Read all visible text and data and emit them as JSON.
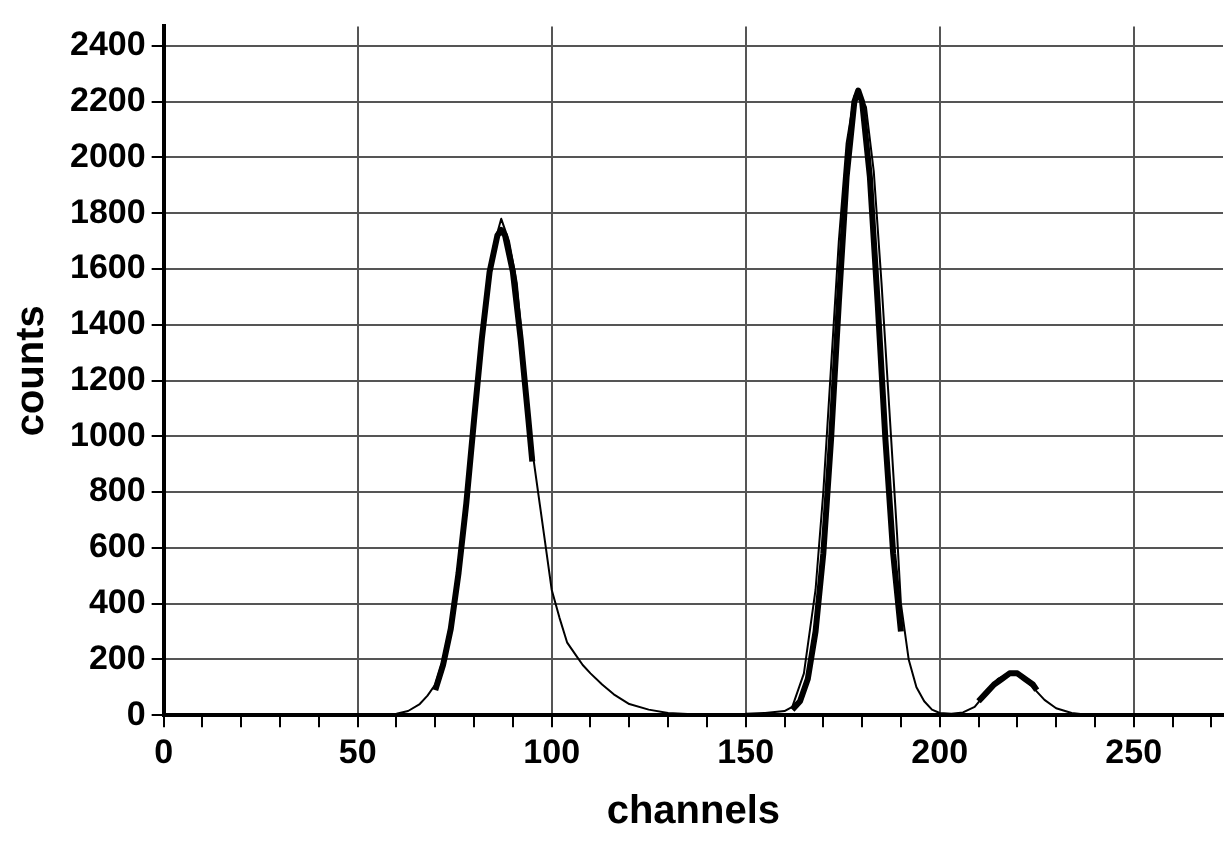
{
  "chart_data": {
    "type": "line",
    "xlabel": "channels",
    "ylabel": "counts",
    "xlim": [
      0,
      273
    ],
    "ylim": [
      0,
      2470
    ],
    "xticks": [
      0,
      {
        "value": 10,
        "label": null
      },
      {
        "value": 20,
        "label": null
      },
      {
        "value": 30,
        "label": null
      },
      {
        "value": 40,
        "label": null
      },
      50,
      {
        "value": 60,
        "label": null
      },
      {
        "value": 70,
        "label": null
      },
      {
        "value": 80,
        "label": null
      },
      {
        "value": 90,
        "label": null
      },
      100,
      {
        "value": 110,
        "label": null
      },
      {
        "value": 120,
        "label": null
      },
      {
        "value": 130,
        "label": null
      },
      {
        "value": 140,
        "label": null
      },
      150,
      {
        "value": 160,
        "label": null
      },
      {
        "value": 170,
        "label": null
      },
      {
        "value": 180,
        "label": null
      },
      {
        "value": 190,
        "label": null
      },
      200,
      {
        "value": 210,
        "label": null
      },
      {
        "value": 220,
        "label": null
      },
      {
        "value": 230,
        "label": null
      },
      {
        "value": 240,
        "label": null
      },
      250,
      {
        "value": 260,
        "label": null
      },
      {
        "value": 270,
        "label": null
      }
    ],
    "yticks": [
      0,
      200,
      400,
      600,
      800,
      1000,
      1200,
      1400,
      1600,
      1800,
      2000,
      2200,
      2400
    ],
    "grid": true,
    "legend": false,
    "marker": "none",
    "line_style": "solid",
    "series": [
      {
        "color": "#000000",
        "x": [
          0,
          55,
          57,
          60,
          63,
          66,
          68,
          70,
          72,
          75,
          78,
          80,
          83,
          85,
          87,
          89,
          91,
          93,
          95,
          97,
          98,
          100,
          102,
          104,
          106,
          108,
          110,
          113,
          116,
          120,
          125,
          130,
          135,
          140,
          150,
          155,
          160,
          162,
          165,
          168,
          170,
          172,
          174,
          176,
          178,
          179,
          181,
          183,
          185,
          187,
          189,
          190,
          192,
          194,
          196,
          198,
          200,
          203,
          206,
          209,
          212,
          215,
          218,
          221,
          224,
          227,
          230,
          234,
          238,
          245,
          273
        ],
        "values": [
          0,
          0,
          2,
          5,
          15,
          40,
          70,
          110,
          200,
          400,
          750,
          1050,
          1450,
          1680,
          1780,
          1700,
          1550,
          1250,
          950,
          750,
          650,
          450,
          350,
          260,
          220,
          180,
          150,
          110,
          75,
          40,
          20,
          8,
          4,
          3,
          5,
          8,
          15,
          30,
          150,
          450,
          800,
          1250,
          1700,
          2050,
          2220,
          2240,
          2180,
          1950,
          1550,
          1100,
          650,
          400,
          200,
          100,
          50,
          20,
          8,
          5,
          10,
          30,
          80,
          130,
          150,
          140,
          100,
          55,
          25,
          8,
          2,
          0,
          0
        ]
      },
      {
        "color": "#000000",
        "x": [
          70,
          72,
          74,
          76,
          78,
          80,
          82,
          84,
          86,
          87,
          88,
          90,
          92,
          94,
          95
        ],
        "values": [
          90,
          180,
          310,
          510,
          760,
          1060,
          1350,
          1590,
          1720,
          1740,
          1720,
          1590,
          1350,
          1060,
          910
        ]
      },
      {
        "color": "#000000",
        "x": [
          162,
          164,
          166,
          168,
          170,
          172,
          174,
          176,
          178,
          179,
          180,
          182,
          184,
          186,
          188,
          190
        ],
        "values": [
          20,
          50,
          130,
          300,
          580,
          990,
          1480,
          1930,
          2200,
          2240,
          2200,
          1930,
          1480,
          990,
          580,
          300
        ]
      },
      {
        "color": "#000000",
        "x": [
          210,
          212,
          214,
          216,
          218,
          219,
          220,
          222,
          224,
          225
        ],
        "values": [
          50,
          80,
          110,
          130,
          150,
          150,
          150,
          130,
          110,
          90
        ]
      }
    ]
  }
}
